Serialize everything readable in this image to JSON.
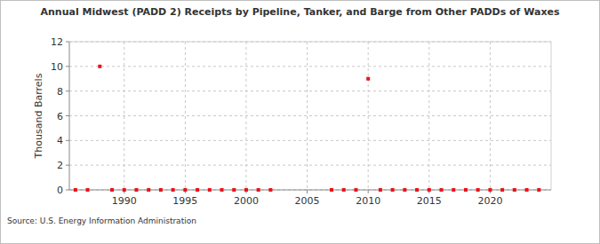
{
  "chart_data": {
    "type": "scatter",
    "title": "Annual Midwest (PADD 2) Receipts by Pipeline, Tanker, and Barge from Other PADDs of Waxes",
    "y_label": "Thousand Barrels",
    "source": "Source: U.S. Energy Information Administration",
    "x": [
      1986,
      1987,
      1988,
      1989,
      1990,
      1991,
      1992,
      1993,
      1994,
      1995,
      1996,
      1997,
      1998,
      1999,
      2000,
      2001,
      2002,
      2007,
      2008,
      2009,
      2010,
      2011,
      2012,
      2013,
      2014,
      2015,
      2016,
      2017,
      2018,
      2019,
      2020,
      2021,
      2022,
      2023,
      2024
    ],
    "values": [
      0,
      0,
      10,
      0,
      0,
      0,
      0,
      0,
      0,
      0,
      0,
      0,
      0,
      0,
      0,
      0,
      0,
      0,
      0,
      0,
      9,
      0,
      0,
      0,
      0,
      0,
      0,
      0,
      0,
      0,
      0,
      0,
      0,
      0,
      0
    ],
    "color": "#e8141b",
    "marker": "square",
    "xlim": [
      1985.5,
      2025
    ],
    "xticks": [
      1990,
      1995,
      2000,
      2005,
      2010,
      2015,
      2020
    ],
    "ylim": [
      0,
      12
    ],
    "yticks": [
      0,
      2,
      4,
      6,
      8,
      10,
      12
    ],
    "grid": true
  }
}
